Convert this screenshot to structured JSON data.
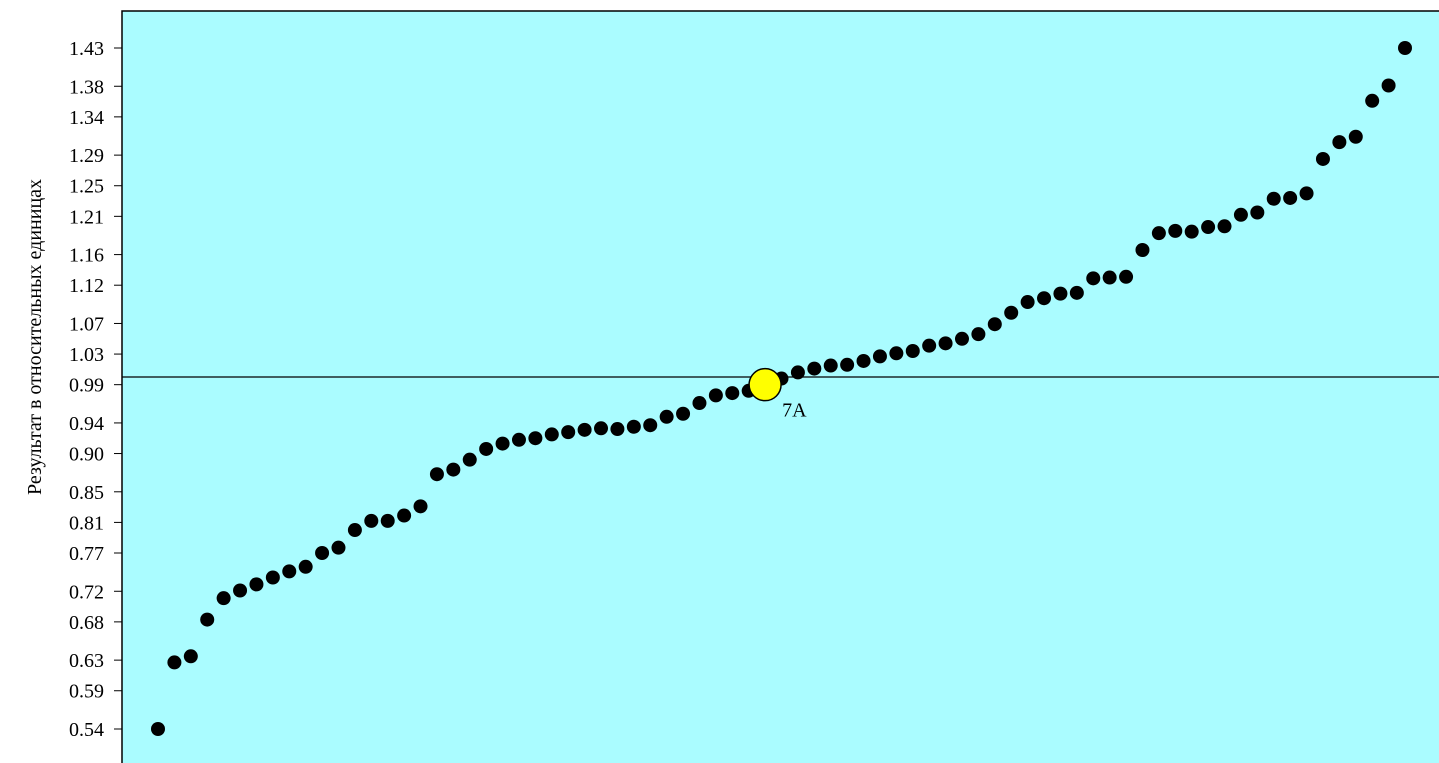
{
  "chart_data": {
    "type": "scatter",
    "ylabel": "Результат в относительных единицах",
    "xlabel": "",
    "ylim": [
      0.505,
      1.45
    ],
    "yticks": [
      "0.54",
      "0.59",
      "0.63",
      "0.68",
      "0.72",
      "0.77",
      "0.81",
      "0.85",
      "0.90",
      "0.94",
      "0.99",
      "1.03",
      "1.07",
      "1.12",
      "1.16",
      "1.21",
      "1.25",
      "1.29",
      "1.34",
      "1.38",
      "1.43"
    ],
    "reference_line": 1.0,
    "plot_background": "#aafcff",
    "point_color": "#000000",
    "highlight": {
      "label": "7A",
      "x": 38,
      "y": 0.99,
      "color": "#ffff00"
    },
    "points": [
      {
        "x": 1,
        "y": 0.54
      },
      {
        "x": 2,
        "y": 0.627
      },
      {
        "x": 3,
        "y": 0.635
      },
      {
        "x": 4,
        "y": 0.683
      },
      {
        "x": 5,
        "y": 0.711
      },
      {
        "x": 6,
        "y": 0.721
      },
      {
        "x": 7,
        "y": 0.729
      },
      {
        "x": 8,
        "y": 0.738
      },
      {
        "x": 9,
        "y": 0.746
      },
      {
        "x": 10,
        "y": 0.752
      },
      {
        "x": 11,
        "y": 0.77
      },
      {
        "x": 12,
        "y": 0.777
      },
      {
        "x": 13,
        "y": 0.8
      },
      {
        "x": 14,
        "y": 0.812
      },
      {
        "x": 15,
        "y": 0.812
      },
      {
        "x": 16,
        "y": 0.819
      },
      {
        "x": 17,
        "y": 0.831
      },
      {
        "x": 18,
        "y": 0.873
      },
      {
        "x": 19,
        "y": 0.879
      },
      {
        "x": 20,
        "y": 0.892
      },
      {
        "x": 21,
        "y": 0.906
      },
      {
        "x": 22,
        "y": 0.913
      },
      {
        "x": 23,
        "y": 0.918
      },
      {
        "x": 24,
        "y": 0.92
      },
      {
        "x": 25,
        "y": 0.925
      },
      {
        "x": 26,
        "y": 0.928
      },
      {
        "x": 27,
        "y": 0.931
      },
      {
        "x": 28,
        "y": 0.933
      },
      {
        "x": 29,
        "y": 0.932
      },
      {
        "x": 30,
        "y": 0.935
      },
      {
        "x": 31,
        "y": 0.937
      },
      {
        "x": 32,
        "y": 0.948
      },
      {
        "x": 33,
        "y": 0.952
      },
      {
        "x": 34,
        "y": 0.966
      },
      {
        "x": 35,
        "y": 0.976
      },
      {
        "x": 36,
        "y": 0.979
      },
      {
        "x": 37,
        "y": 0.982
      },
      {
        "x": 39,
        "y": 0.998
      },
      {
        "x": 40,
        "y": 1.006
      },
      {
        "x": 41,
        "y": 1.011
      },
      {
        "x": 42,
        "y": 1.015
      },
      {
        "x": 43,
        "y": 1.016
      },
      {
        "x": 44,
        "y": 1.021
      },
      {
        "x": 45,
        "y": 1.027
      },
      {
        "x": 46,
        "y": 1.031
      },
      {
        "x": 47,
        "y": 1.034
      },
      {
        "x": 48,
        "y": 1.041
      },
      {
        "x": 49,
        "y": 1.044
      },
      {
        "x": 50,
        "y": 1.05
      },
      {
        "x": 51,
        "y": 1.056
      },
      {
        "x": 52,
        "y": 1.069
      },
      {
        "x": 53,
        "y": 1.084
      },
      {
        "x": 54,
        "y": 1.098
      },
      {
        "x": 55,
        "y": 1.103
      },
      {
        "x": 56,
        "y": 1.109
      },
      {
        "x": 57,
        "y": 1.11
      },
      {
        "x": 58,
        "y": 1.129
      },
      {
        "x": 59,
        "y": 1.13
      },
      {
        "x": 60,
        "y": 1.131
      },
      {
        "x": 61,
        "y": 1.166
      },
      {
        "x": 62,
        "y": 1.188
      },
      {
        "x": 63,
        "y": 1.191
      },
      {
        "x": 64,
        "y": 1.19
      },
      {
        "x": 65,
        "y": 1.196
      },
      {
        "x": 66,
        "y": 1.197
      },
      {
        "x": 67,
        "y": 1.212
      },
      {
        "x": 68,
        "y": 1.215
      },
      {
        "x": 69,
        "y": 1.233
      },
      {
        "x": 70,
        "y": 1.234
      },
      {
        "x": 71,
        "y": 1.24
      },
      {
        "x": 72,
        "y": 1.285
      },
      {
        "x": 73,
        "y": 1.307
      },
      {
        "x": 74,
        "y": 1.314
      },
      {
        "x": 75,
        "y": 1.361
      },
      {
        "x": 76,
        "y": 1.381
      },
      {
        "x": 77,
        "y": 1.43
      }
    ]
  }
}
